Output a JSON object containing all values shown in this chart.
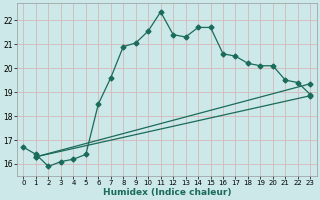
{
  "title": "",
  "xlabel": "Humidex (Indice chaleur)",
  "ylabel": "",
  "background_color": "#cce8e8",
  "grid_color": "#b8d4d4",
  "line_color": "#1a6b5a",
  "xlim": [
    -0.5,
    23.5
  ],
  "ylim": [
    15.5,
    22.7
  ],
  "yticks": [
    16,
    17,
    18,
    19,
    20,
    21,
    22
  ],
  "xticks": [
    0,
    1,
    2,
    3,
    4,
    5,
    6,
    7,
    8,
    9,
    10,
    11,
    12,
    13,
    14,
    15,
    16,
    17,
    18,
    19,
    20,
    21,
    22,
    23
  ],
  "series1_x": [
    0,
    1,
    2,
    3,
    4,
    5,
    6,
    7,
    8,
    9,
    10,
    11,
    12,
    13,
    14,
    15,
    16,
    17,
    18,
    19,
    20,
    21,
    22,
    23
  ],
  "series1_y": [
    16.7,
    16.4,
    15.9,
    16.1,
    16.2,
    16.4,
    18.5,
    19.6,
    20.9,
    21.05,
    21.55,
    22.35,
    21.4,
    21.3,
    21.7,
    21.7,
    20.6,
    20.5,
    20.2,
    20.1,
    20.1,
    19.5,
    19.4,
    18.9
  ],
  "series2_x": [
    1,
    23
  ],
  "series2_y": [
    16.3,
    19.35
  ],
  "series3_x": [
    1,
    23
  ],
  "series3_y": [
    16.3,
    18.85
  ],
  "markersize": 2.5,
  "linewidth": 0.9
}
